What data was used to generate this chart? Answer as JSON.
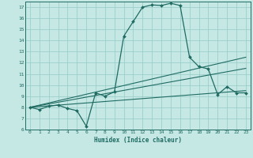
{
  "xlabel": "Humidex (Indice chaleur)",
  "xlim": [
    -0.5,
    23.5
  ],
  "ylim": [
    6,
    17.5
  ],
  "xticks": [
    0,
    1,
    2,
    3,
    4,
    5,
    6,
    7,
    8,
    9,
    10,
    11,
    12,
    13,
    14,
    15,
    16,
    17,
    18,
    19,
    20,
    21,
    22,
    23
  ],
  "yticks": [
    6,
    7,
    8,
    9,
    10,
    11,
    12,
    13,
    14,
    15,
    16,
    17
  ],
  "bg_color": "#c5e8e5",
  "line_color": "#1f6b62",
  "grid_color": "#9dcfca",
  "main_line": {
    "x": [
      0,
      1,
      2,
      3,
      4,
      5,
      6,
      7,
      8,
      9,
      10,
      11,
      12,
      13,
      14,
      15,
      16,
      17,
      18,
      19,
      20,
      21,
      22,
      23
    ],
    "y": [
      8.0,
      7.8,
      8.1,
      8.2,
      7.9,
      7.7,
      6.3,
      9.3,
      9.0,
      9.4,
      14.4,
      15.7,
      17.0,
      17.2,
      17.15,
      17.35,
      17.15,
      12.5,
      11.65,
      11.45,
      9.15,
      9.85,
      9.3,
      9.3
    ]
  },
  "trend_lines": [
    {
      "x": [
        0,
        23
      ],
      "y": [
        8.0,
        9.5
      ]
    },
    {
      "x": [
        0,
        23
      ],
      "y": [
        8.0,
        11.5
      ]
    },
    {
      "x": [
        0,
        23
      ],
      "y": [
        8.0,
        12.5
      ]
    }
  ]
}
